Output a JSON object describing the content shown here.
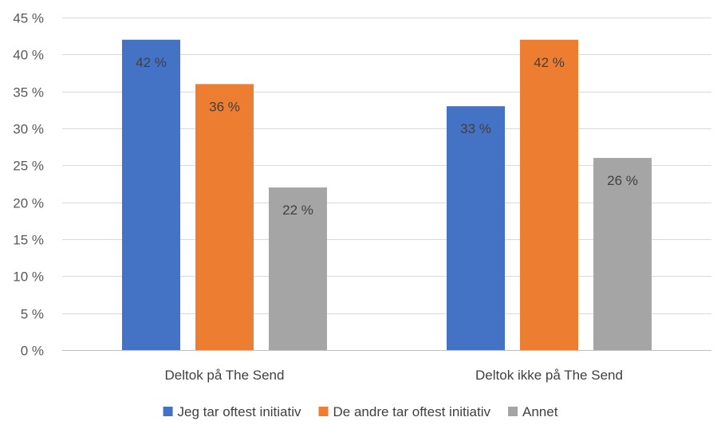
{
  "chart_data": {
    "type": "bar",
    "categories": [
      "Deltok på The Send",
      "Deltok ikke på The Send"
    ],
    "series": [
      {
        "name": "Jeg tar oftest initiativ",
        "values": [
          42,
          33
        ],
        "labels": [
          "42 %",
          "33 %"
        ],
        "color": "#4472C4"
      },
      {
        "name": "De andre tar oftest initiativ",
        "values": [
          36,
          42
        ],
        "labels": [
          "36 %",
          "42 %"
        ],
        "color": "#ED7D31"
      },
      {
        "name": "Annet",
        "values": [
          22,
          26
        ],
        "labels": [
          "22 %",
          "26 %"
        ],
        "color": "#A5A5A5"
      }
    ],
    "ylim": [
      0,
      45
    ],
    "yticks": [
      0,
      5,
      10,
      15,
      20,
      25,
      30,
      35,
      40,
      45
    ],
    "ytick_labels": [
      "0 %",
      "5 %",
      "10 %",
      "15 %",
      "20 %",
      "25 %",
      "30 %",
      "35 %",
      "40 %",
      "45 %"
    ],
    "grid": true,
    "legend": "bottom",
    "title": "",
    "xlabel": "",
    "ylabel": ""
  }
}
